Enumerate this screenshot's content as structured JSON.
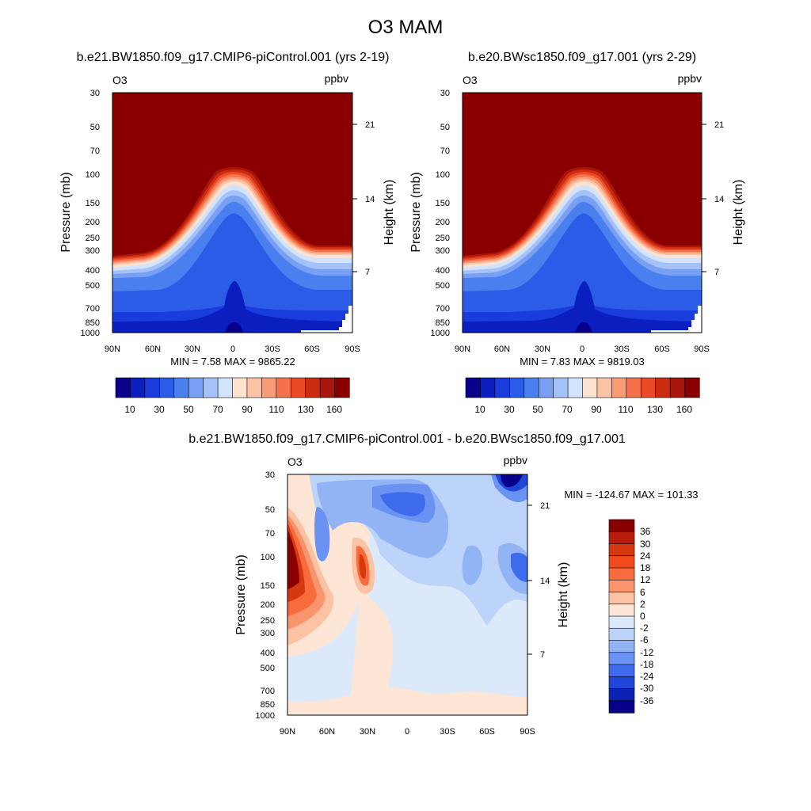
{
  "chart_data": {
    "type": "heatmap",
    "title": "O3 MAM",
    "colors": {
      "abs": [
        "#08008a",
        "#0b1ec0",
        "#1a3cdc",
        "#2b5ce8",
        "#4a7ff0",
        "#789ff4",
        "#a4c2f8",
        "#d2e4fc",
        "#fde2d0",
        "#fcc2a6",
        "#fa9c78",
        "#f5714b",
        "#ea4a26",
        "#cb2c10",
        "#a8150a",
        "#8a0000"
      ],
      "diff": [
        "#8a0000",
        "#b81c0c",
        "#d6380f",
        "#f24a1c",
        "#f86b3c",
        "#f9946c",
        "#fbc2a4",
        "#fde6d6",
        "#dce9fa",
        "#bcd4fa",
        "#92b4f5",
        "#6a92f2",
        "#3f6cec",
        "#1e46d8",
        "#0b22b4",
        "#06008a"
      ]
    },
    "panels": [
      {
        "subtitle": "b.e21.BW1850.f09_g17.CMIP6-piControl.001 (yrs 2-19)",
        "variable": "O3",
        "units": "ppbv",
        "ylabel": "Pressure (mb)",
        "y2label": "Height (km)",
        "min_label": "MIN =   7.58  MAX = 9865.22",
        "yticks": [
          "30",
          "50",
          "70",
          "100",
          "150",
          "200",
          "250",
          "300",
          "400",
          "500",
          "700",
          "850",
          "1000"
        ],
        "y2ticks": [
          "21",
          "14",
          "7"
        ],
        "xticks": [
          "90N",
          "60N",
          "30N",
          "0",
          "30S",
          "60S",
          "90S"
        ],
        "colorbar_labels": [
          "10",
          "30",
          "50",
          "70",
          "90",
          "110",
          "130",
          "160"
        ]
      },
      {
        "subtitle": "b.e20.BWsc1850.f09_g17.001 (yrs 2-29)",
        "variable": "O3",
        "units": "ppbv",
        "ylabel": "Pressure (mb)",
        "y2label": "Height (km)",
        "min_label": "MIN =   7.83  MAX = 9819.03",
        "yticks": [
          "30",
          "50",
          "70",
          "100",
          "150",
          "200",
          "250",
          "300",
          "400",
          "500",
          "700",
          "850",
          "1000"
        ],
        "y2ticks": [
          "21",
          "14",
          "7"
        ],
        "xticks": [
          "90N",
          "60N",
          "30N",
          "0",
          "30S",
          "60S",
          "90S"
        ],
        "colorbar_labels": [
          "10",
          "30",
          "50",
          "70",
          "90",
          "110",
          "130",
          "160"
        ]
      },
      {
        "subtitle": "b.e21.BW1850.f09_g17.CMIP6-piControl.001 - b.e20.BWsc1850.f09_g17.001",
        "variable": "O3",
        "units": "ppbv",
        "ylabel": "Pressure (mb)",
        "y2label": "Height (km)",
        "min_label": "MIN = -124.67  MAX = 101.33",
        "yticks": [
          "30",
          "50",
          "70",
          "100",
          "150",
          "200",
          "250",
          "300",
          "400",
          "500",
          "700",
          "850",
          "1000"
        ],
        "y2ticks": [
          "21",
          "14",
          "7"
        ],
        "xticks": [
          "90N",
          "60N",
          "30N",
          "0",
          "30S",
          "60S",
          "90S"
        ],
        "colorbar_labels": [
          "36",
          "30",
          "24",
          "18",
          "12",
          "6",
          "2",
          "0",
          "-2",
          "-6",
          "-12",
          "-18",
          "-24",
          "-30",
          "-36"
        ]
      }
    ]
  }
}
